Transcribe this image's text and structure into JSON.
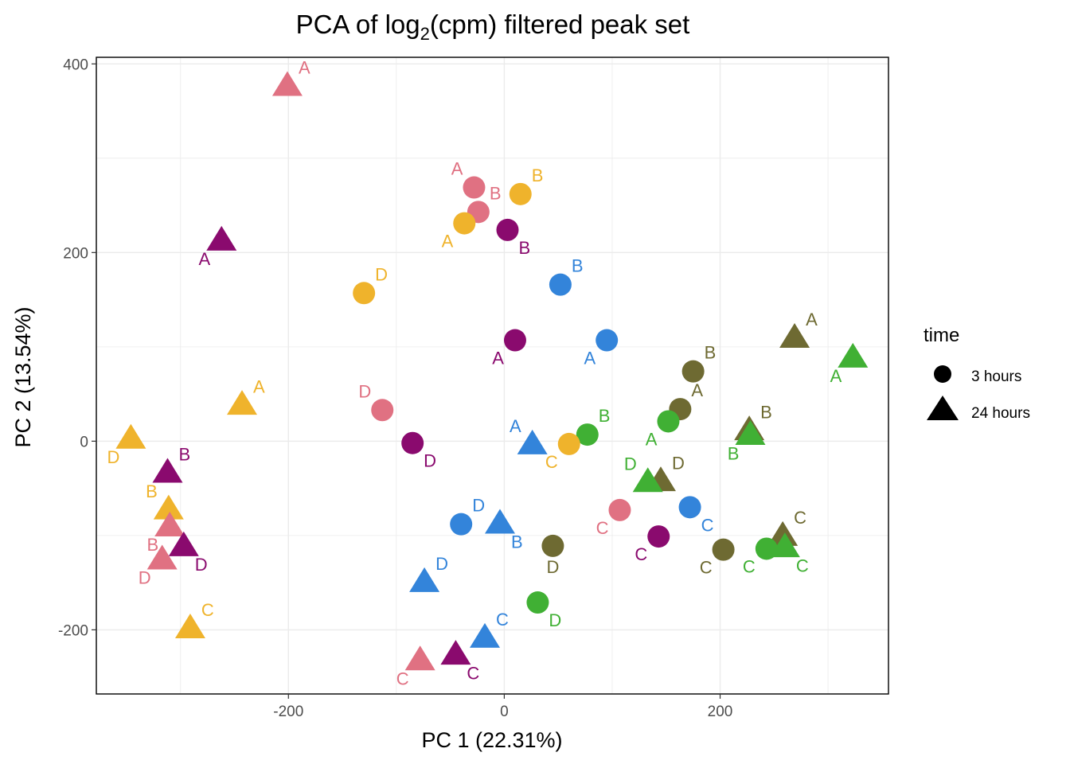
{
  "chart_data": {
    "type": "scatter",
    "title_main": "PCA of log",
    "title_sub": "2",
    "title_rest": "(cpm) filtered peak set",
    "xlabel": "PC 1 (22.31%)",
    "ylabel": "PC 2 (13.54%)",
    "xlim": [
      -378,
      356
    ],
    "ylim": [
      -268,
      407
    ],
    "xticks": [
      -200,
      0,
      200
    ],
    "xtick_labels": [
      "-200",
      "0",
      "200"
    ],
    "yticks": [
      -200,
      0,
      200,
      400
    ],
    "ytick_labels": [
      "-200",
      "0",
      "200",
      "400"
    ],
    "grid": true,
    "legend": {
      "title": "time",
      "position": "right",
      "entries": [
        {
          "label": "3 hours",
          "shape": "circle"
        },
        {
          "label": "24 hours",
          "shape": "triangle"
        }
      ]
    },
    "colors": {
      "pink": "#E07182",
      "gold": "#EFB32C",
      "purple": "#8A0A6E",
      "blue": "#3384DA",
      "olive": "#6E6A32",
      "green": "#40B034"
    },
    "points": [
      {
        "x": -201,
        "y": 376,
        "shape": "triangle",
        "color": "pink",
        "label": "A",
        "lpos": "ne"
      },
      {
        "x": -28,
        "y": 269,
        "shape": "circle",
        "color": "pink",
        "label": "A",
        "lpos": "nw"
      },
      {
        "x": -24,
        "y": 243,
        "shape": "circle",
        "color": "pink",
        "label": "B",
        "lpos": "ne"
      },
      {
        "x": 15,
        "y": 262,
        "shape": "circle",
        "color": "gold",
        "label": "B",
        "lpos": "ne"
      },
      {
        "x": -37,
        "y": 231,
        "shape": "circle",
        "color": "gold",
        "label": "A",
        "lpos": "sw"
      },
      {
        "x": 3,
        "y": 224,
        "shape": "circle",
        "color": "purple",
        "label": "B",
        "lpos": "se"
      },
      {
        "x": -262,
        "y": 212,
        "shape": "triangle",
        "color": "purple",
        "label": "A",
        "lpos": "sw"
      },
      {
        "x": -130,
        "y": 157,
        "shape": "circle",
        "color": "gold",
        "label": "D",
        "lpos": "ne"
      },
      {
        "x": 52,
        "y": 166,
        "shape": "circle",
        "color": "blue",
        "label": "B",
        "lpos": "ne"
      },
      {
        "x": 10,
        "y": 107,
        "shape": "circle",
        "color": "purple",
        "label": "A",
        "lpos": "sw"
      },
      {
        "x": 95,
        "y": 107,
        "shape": "circle",
        "color": "blue",
        "label": "A",
        "lpos": "sw"
      },
      {
        "x": 269,
        "y": 109,
        "shape": "triangle",
        "color": "olive",
        "label": "A",
        "lpos": "ne"
      },
      {
        "x": 323,
        "y": 88,
        "shape": "triangle",
        "color": "green",
        "label": "A",
        "lpos": "sw"
      },
      {
        "x": 175,
        "y": 74,
        "shape": "circle",
        "color": "olive",
        "label": "B",
        "lpos": "ne"
      },
      {
        "x": 163,
        "y": 34,
        "shape": "circle",
        "color": "olive",
        "label": "A",
        "lpos": "ne"
      },
      {
        "x": 152,
        "y": 21,
        "shape": "circle",
        "color": "green",
        "label": "A",
        "lpos": "sw"
      },
      {
        "x": -243,
        "y": 38,
        "shape": "triangle",
        "color": "gold",
        "label": "A",
        "lpos": "ne"
      },
      {
        "x": -113,
        "y": 33,
        "shape": "circle",
        "color": "pink",
        "label": "D",
        "lpos": "nw"
      },
      {
        "x": 227,
        "y": 11,
        "shape": "triangle",
        "color": "olive",
        "label": "B",
        "lpos": "ne"
      },
      {
        "x": 228,
        "y": 6,
        "shape": "triangle",
        "color": "green",
        "label": "B",
        "lpos": "sw"
      },
      {
        "x": 77,
        "y": 7,
        "shape": "circle",
        "color": "green",
        "label": "B",
        "lpos": "ne"
      },
      {
        "x": -346,
        "y": 2,
        "shape": "triangle",
        "color": "gold",
        "label": "D",
        "lpos": "sw"
      },
      {
        "x": -85,
        "y": -2,
        "shape": "circle",
        "color": "purple",
        "label": "D",
        "lpos": "se"
      },
      {
        "x": 26,
        "y": -4,
        "shape": "triangle",
        "color": "blue",
        "label": "A",
        "lpos": "nw"
      },
      {
        "x": 60,
        "y": -3,
        "shape": "circle",
        "color": "gold",
        "label": "C",
        "lpos": "sw"
      },
      {
        "x": -312,
        "y": -34,
        "shape": "triangle",
        "color": "purple",
        "label": "B",
        "lpos": "ne"
      },
      {
        "x": 145,
        "y": -43,
        "shape": "triangle",
        "color": "olive",
        "label": "D",
        "lpos": "ne"
      },
      {
        "x": 133,
        "y": -44,
        "shape": "triangle",
        "color": "green",
        "label": "D",
        "lpos": "nw"
      },
      {
        "x": -311,
        "y": -73,
        "shape": "triangle",
        "color": "gold",
        "label": "B",
        "lpos": "nw"
      },
      {
        "x": 107,
        "y": -73,
        "shape": "circle",
        "color": "pink",
        "label": "C",
        "lpos": "sw"
      },
      {
        "x": 172,
        "y": -70,
        "shape": "circle",
        "color": "blue",
        "label": "C",
        "lpos": "se"
      },
      {
        "x": -40,
        "y": -88,
        "shape": "circle",
        "color": "blue",
        "label": "D",
        "lpos": "ne"
      },
      {
        "x": -4,
        "y": -88,
        "shape": "triangle",
        "color": "blue",
        "label": "B",
        "lpos": "se"
      },
      {
        "x": -310,
        "y": -91,
        "shape": "triangle",
        "color": "pink",
        "label": "B",
        "lpos": "sw"
      },
      {
        "x": 143,
        "y": -101,
        "shape": "circle",
        "color": "purple",
        "label": "C",
        "lpos": "sw"
      },
      {
        "x": 258,
        "y": -101,
        "shape": "triangle",
        "color": "olive",
        "label": "C",
        "lpos": "ne"
      },
      {
        "x": -297,
        "y": -112,
        "shape": "triangle",
        "color": "purple",
        "label": "D",
        "lpos": "se"
      },
      {
        "x": 45,
        "y": -111,
        "shape": "circle",
        "color": "olive",
        "label": "D",
        "lpos": "s"
      },
      {
        "x": 203,
        "y": -115,
        "shape": "circle",
        "color": "olive",
        "label": "C",
        "lpos": "sw"
      },
      {
        "x": 243,
        "y": -114,
        "shape": "circle",
        "color": "green",
        "label": "C",
        "lpos": "sw"
      },
      {
        "x": 260,
        "y": -113,
        "shape": "triangle",
        "color": "green",
        "label": "C",
        "lpos": "se"
      },
      {
        "x": -317,
        "y": -126,
        "shape": "triangle",
        "color": "pink",
        "label": "D",
        "lpos": "sw"
      },
      {
        "x": -74,
        "y": -150,
        "shape": "triangle",
        "color": "blue",
        "label": "D",
        "lpos": "ne"
      },
      {
        "x": 31,
        "y": -171,
        "shape": "circle",
        "color": "green",
        "label": "D",
        "lpos": "se"
      },
      {
        "x": -291,
        "y": -199,
        "shape": "triangle",
        "color": "gold",
        "label": "C",
        "lpos": "ne"
      },
      {
        "x": -18,
        "y": -209,
        "shape": "triangle",
        "color": "blue",
        "label": "C",
        "lpos": "ne"
      },
      {
        "x": -45,
        "y": -227,
        "shape": "triangle",
        "color": "purple",
        "label": "C",
        "lpos": "se"
      },
      {
        "x": -78,
        "y": -233,
        "shape": "triangle",
        "color": "pink",
        "label": "C",
        "lpos": "sw"
      }
    ]
  }
}
